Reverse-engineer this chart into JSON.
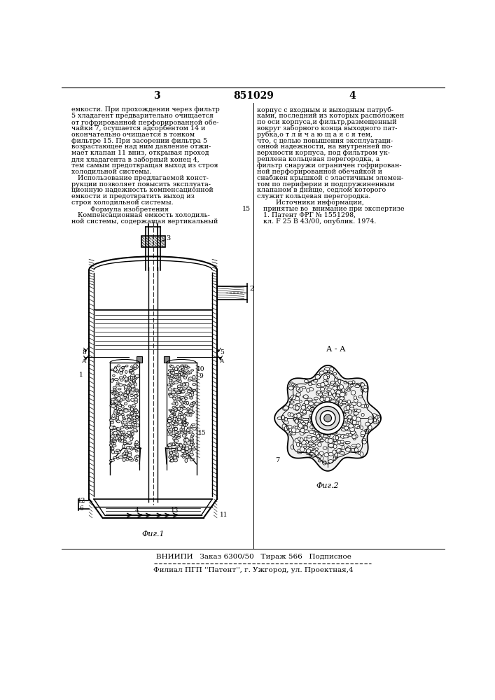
{
  "page_number_left": "3",
  "patent_number": "851029",
  "page_number_right": "4",
  "text_left_lines": [
    "емкости. При прохождении через фильтр",
    "5 хладагент предварительно очищается",
    "от гофрированной перфорированной обе-",
    "чайки 7, осушается адсорбентом 14 и",
    "окончательно очищается в тонком",
    "фильтре 15. При засорении фильтра 5",
    "возрастающее над ним давление отжи-",
    "мает клапан 11 вниз, открывая проход",
    "для хладагента в заборный конец 4,",
    "тем самым предотвращая выход из строя",
    "холодильной системы.",
    "   Использование предлагаемой конст-",
    "рукции позволяет повысить эксплуата-",
    "ционную надежность компенсационной",
    "емкости и предотвратить выход из",
    "строя холодильной системы.",
    "         Формула изобретения",
    "   Компенсационная емкость холодиль-",
    "ной системы, содержащая вертикальный"
  ],
  "text_right_lines": [
    "корпус с входным и выходным патруб-",
    "ками, последний из которых расположен",
    "по оси корпуса,и фильтр,размещенный",
    "вокруг заборного конца выходного пат-",
    "рубка,о т л и ч а ю щ а я с я тем,",
    "что, с целью повышения эксплуатаци-",
    "онной надежности, на внутренней по-",
    "верхности корпуса, под фильтром ук-",
    "реплена кольцевая перегородка, а",
    "фильтр снаружи ограничен гофрирован-",
    "ной перфорированной обечайкой и",
    "снабжен крышкой с эластичным элемен-",
    "том по периферии и подпружиненным",
    "клапаном в днище, седлом которого",
    "служит кольцевая перегородка.",
    "         Источники информации,",
    "   принятые во  внимание при экспертизе",
    "   1. Патент ФРГ № 1551298,",
    "   кл. F 25 B 43/00, опублик. 1974."
  ],
  "line_number": "15",
  "fig1_caption": "Фиг.1",
  "fig2_caption": "Фиг.2",
  "section_label": "А - А",
  "vniiipi_line": "ВНИИПИ   Заказ 6300/50   Тираж 566   Подписное",
  "filial_line": "Филиал ПГП ''Патент'', г. Ужгород, ул. Проектная,4",
  "bg_color": "#ffffff",
  "text_color": "#000000",
  "line_color": "#000000",
  "hatch_color": "#333333"
}
